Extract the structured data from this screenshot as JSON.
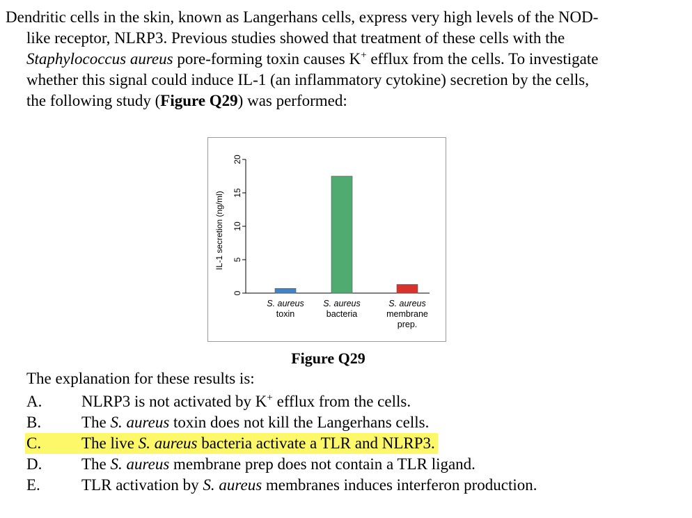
{
  "stem": {
    "l1": "Dendritic cells in the skin, known as Langerhans cells, express very high levels of the NOD-",
    "l2": "like receptor, NLRP3. Previous studies showed that treatment of these cells with the",
    "l3_species": "Staphylococcus aureus",
    "l3_rest_a": " pore-forming toxin causes K",
    "l3_sup": "+",
    "l3_rest_b": " efflux from the cells. To investigate",
    "l4": "whether this signal could induce IL-1 (an inflammatory cytokine) secretion by the cells,",
    "l5_a": "the following study (",
    "l5_fig": "Figure Q29",
    "l5_b": ") was performed:"
  },
  "figure": {
    "caption": "Figure Q29"
  },
  "chart_data": {
    "type": "bar",
    "ylabel": "IL-1 secretion (ng/ml)",
    "ylim": [
      0,
      20
    ],
    "yticks": [
      "0",
      "5",
      "10",
      "15",
      "20"
    ],
    "categories": [
      [
        "S. aureus",
        "toxin"
      ],
      [
        "S. aureus",
        "bacteria"
      ],
      [
        "S. aureus",
        "membrane",
        "prep."
      ]
    ],
    "values": [
      0.7,
      17.5,
      1.3
    ],
    "colors": [
      "#3f84c8",
      "#4fab70",
      "#d9312b"
    ]
  },
  "question": {
    "prompt": "The explanation for these results is:",
    "options": [
      {
        "letter": "A.",
        "a": "NLRP3 is not activated by K",
        "sup": "+",
        "b": " efflux from the cells."
      },
      {
        "letter": "B.",
        "a": "The ",
        "i": "S. aureus",
        "b": " toxin does not kill the Langerhans cells."
      },
      {
        "letter": "C.",
        "a": "The live ",
        "i": "S. aureus",
        "b": " bacteria activate a TLR and NLRP3."
      },
      {
        "letter": "D.",
        "a": "The ",
        "i": "S. aureus",
        "b": " membrane prep does not contain a TLR ligand."
      },
      {
        "letter": "E.",
        "a": "TLR activation by ",
        "i": "S. aureus",
        "b": " membranes induces interferon production."
      }
    ],
    "highlight_color": "#fdf86a"
  }
}
